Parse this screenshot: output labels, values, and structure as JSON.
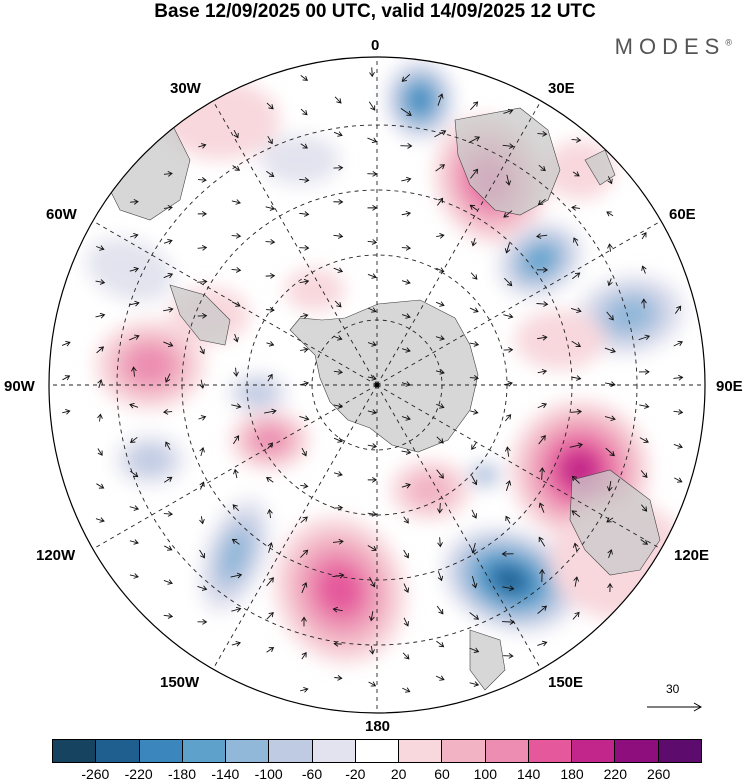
{
  "header": {
    "title": "Base 12/09/2025 00 UTC, valid 14/09/2025 12 UTC",
    "brand": "MODES",
    "brand_mark": "®"
  },
  "map": {
    "projection": "south-polar-stereographic",
    "meridian_labels": {
      "m0": "0",
      "m30e": "30E",
      "m60e": "60E",
      "m90e": "90E",
      "m120e": "120E",
      "m150e": "150E",
      "m180": "180",
      "m150w": "150W",
      "m120w": "120W",
      "m90w": "90W",
      "m60w": "60W",
      "m30w": "30W"
    },
    "reference_vector": {
      "value": "30"
    }
  },
  "colorbar": {
    "labels": [
      "-260",
      "-220",
      "-180",
      "-140",
      "-100",
      "-60",
      "-20",
      "20",
      "60",
      "100",
      "140",
      "180",
      "220",
      "260"
    ],
    "colors": [
      "#16435f",
      "#1e5f8f",
      "#3a86bd",
      "#5ea2cc",
      "#91b7d9",
      "#bfcbe3",
      "#e3e3ef",
      "#ffffff",
      "#f8d8dd",
      "#f2b3c4",
      "#ec8db1",
      "#e5599c",
      "#c3268a",
      "#8f0e7d",
      "#5e0b6e"
    ]
  },
  "colors": {
    "land": "#c9c9c9",
    "grid": "#222222"
  }
}
